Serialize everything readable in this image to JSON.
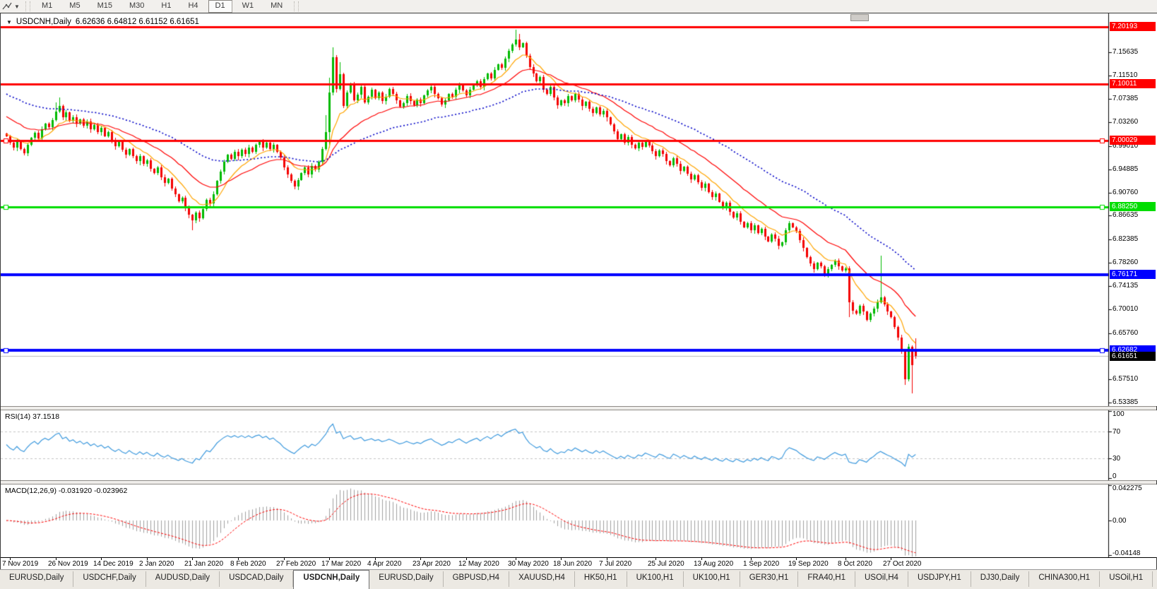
{
  "toolbar": {
    "timeframes": [
      "M1",
      "M5",
      "M15",
      "M30",
      "H1",
      "H4",
      "D1",
      "W1",
      "MN"
    ],
    "active": "D1"
  },
  "title": {
    "symbol_period": "USDCNH,Daily",
    "ohlc": "6.62636 6.64812 6.61152 6.61651"
  },
  "price_axis": {
    "ticks": [
      "7.15635",
      "7.11510",
      "7.07385",
      "7.03260",
      "6.99010",
      "6.94885",
      "6.90760",
      "6.86635",
      "6.82385",
      "6.78260",
      "6.74135",
      "6.70010",
      "6.65760",
      "6.57510",
      "6.53385"
    ],
    "levels": [
      {
        "label": "7.20193",
        "value": 7.20193,
        "color": "#ff0000",
        "width": 3,
        "handles": false
      },
      {
        "label": "7.10011",
        "value": 7.10011,
        "color": "#ff0000",
        "width": 3,
        "handles": false
      },
      {
        "label": "7.00029",
        "value": 7.00029,
        "color": "#ff0000",
        "width": 3,
        "handles": true
      },
      {
        "label": "6.88250",
        "value": 6.8825,
        "color": "#00dd00",
        "width": 3,
        "handles": true
      },
      {
        "label": "6.76171",
        "value": 6.76171,
        "color": "#0000ff",
        "width": 4,
        "handles": false
      },
      {
        "label": "6.62682",
        "value": 6.62682,
        "color": "#0000ff",
        "width": 4,
        "handles": true
      }
    ],
    "current": {
      "label": "6.61651",
      "value": 6.61651,
      "line_color": "#bbbbbb",
      "badge_color": "#000000"
    }
  },
  "time_axis": {
    "labels": [
      "7 Nov 2019",
      "26 Nov 2019",
      "14 Dec 2019",
      "2 Jan 2020",
      "21 Jan 2020",
      "8 Feb 2020",
      "27 Feb 2020",
      "17 Mar 2020",
      "4 Apr 2020",
      "23 Apr 2020",
      "12 May 2020",
      "30 May 2020",
      "18 Jun 2020",
      "7 Jul 2020",
      "25 Jul 2020",
      "13 Aug 2020",
      "1 Sep 2020",
      "19 Sep 2020",
      "8 Oct 2020",
      "27 Oct 2020"
    ],
    "tick_bars": [
      1,
      14,
      27,
      40,
      53,
      66,
      79,
      92,
      105,
      118,
      131,
      145,
      158,
      171,
      185,
      198,
      212,
      225,
      239,
      252
    ]
  },
  "rsi": {
    "label": "RSI(14) 37.1518",
    "value": 37.1518,
    "period": 14,
    "axis_labels": [
      {
        "text": "100",
        "v": 100
      },
      {
        "text": "70",
        "v": 70
      },
      {
        "text": "30",
        "v": 30
      },
      {
        "text": "0",
        "v": 0
      }
    ],
    "level_lines": [
      70,
      30
    ],
    "color": "#3e9ade"
  },
  "macd": {
    "label": "MACD(12,26,9) -0.031920 -0.023962",
    "macd_value": -0.03192,
    "signal_value": -0.023962,
    "axis_labels": [
      {
        "text": "0.042275",
        "v": 0.042275
      },
      {
        "text": "0.00",
        "v": 0
      },
      {
        "text": "-0.04148",
        "v": -0.04148
      }
    ],
    "range": [
      -0.0415,
      0.0423
    ],
    "hist_color": "#a0a0a0",
    "signal_color": "#ff0000"
  },
  "chart_data": {
    "type": "candlestick",
    "symbol": "USDCNH",
    "period": "Daily",
    "ylim": [
      6.528,
      7.226
    ],
    "first_open": 7.012,
    "closes": [
      7.008,
      6.996,
      6.988,
      6.999,
      6.985,
      6.978,
      6.992,
      7.005,
      7.014,
      7.004,
      7.02,
      7.03,
      7.024,
      7.036,
      7.052,
      7.061,
      7.042,
      7.05,
      7.035,
      7.042,
      7.03,
      7.038,
      7.026,
      7.034,
      7.02,
      7.028,
      7.015,
      7.022,
      7.008,
      7.015,
      7.0,
      6.99,
      6.998,
      6.984,
      6.975,
      6.985,
      6.972,
      6.963,
      6.972,
      6.958,
      6.965,
      6.95,
      6.942,
      6.952,
      6.935,
      6.925,
      6.932,
      6.915,
      6.905,
      6.892,
      6.898,
      6.88,
      6.868,
      6.858,
      6.872,
      6.862,
      6.878,
      6.895,
      6.888,
      6.905,
      6.928,
      6.945,
      6.962,
      6.975,
      6.968,
      6.98,
      6.972,
      6.984,
      6.976,
      6.988,
      6.98,
      6.992,
      6.998,
      6.988,
      6.996,
      6.985,
      6.992,
      6.98,
      6.97,
      6.952,
      6.94,
      6.928,
      6.918,
      6.93,
      6.942,
      6.952,
      6.94,
      6.955,
      6.948,
      6.962,
      6.985,
      7.015,
      7.085,
      7.148,
      7.092,
      7.118,
      7.062,
      7.085,
      7.102,
      7.072,
      7.082,
      7.096,
      7.068,
      7.078,
      7.09,
      7.075,
      7.085,
      7.07,
      7.078,
      7.092,
      7.083,
      7.071,
      7.06,
      7.067,
      7.079,
      7.07,
      7.063,
      7.073,
      7.066,
      7.08,
      7.089,
      7.096,
      7.083,
      7.075,
      7.064,
      7.071,
      7.083,
      7.078,
      7.091,
      7.099,
      7.089,
      7.081,
      7.091,
      7.099,
      7.106,
      7.096,
      7.109,
      7.119,
      7.111,
      7.126,
      7.136,
      7.129,
      7.146,
      7.159,
      7.171,
      7.179,
      7.166,
      7.173,
      7.151,
      7.131,
      7.119,
      7.106,
      7.113,
      7.091,
      7.083,
      7.096,
      7.076,
      7.063,
      7.071,
      7.066,
      7.079,
      7.071,
      7.083,
      7.073,
      7.061,
      7.069,
      7.056,
      7.049,
      7.059,
      7.046,
      7.053,
      7.041,
      7.029,
      7.016,
      7.003,
      7.011,
      6.996,
      7.006,
      6.993,
      6.986,
      6.996,
      6.989,
      6.999,
      6.991,
      6.981,
      6.973,
      6.983,
      6.976,
      6.963,
      6.956,
      6.969,
      6.959,
      6.946,
      6.953,
      6.941,
      6.931,
      6.939,
      6.926,
      6.916,
      6.923,
      6.909,
      6.899,
      6.906,
      6.891,
      6.881,
      6.889,
      6.873,
      6.863,
      6.871,
      6.856,
      6.846,
      6.853,
      6.841,
      6.849,
      6.836,
      6.843,
      6.829,
      6.821,
      6.833,
      6.826,
      6.813,
      6.819,
      6.841,
      6.853,
      6.846,
      6.839,
      6.823,
      6.809,
      6.793,
      6.781,
      6.771,
      6.783,
      6.776,
      6.763,
      6.771,
      6.779,
      6.786,
      6.776,
      6.769,
      6.773,
      6.712,
      6.698,
      6.693,
      6.706,
      6.696,
      6.681,
      6.693,
      6.701,
      6.713,
      6.721,
      6.709,
      6.696,
      6.686,
      6.668,
      6.65,
      6.628,
      6.576,
      6.634,
      6.6005,
      6.61651
    ],
    "overrides": {
      "0": {
        "o": 7.012
      },
      "14": {
        "h": 7.068
      },
      "15": {
        "h": 7.076
      },
      "53": {
        "l": 6.841
      },
      "91": {
        "h": 7.045
      },
      "92": {
        "h": 7.112,
        "l": 6.988
      },
      "93": {
        "h": 7.166
      },
      "95": {
        "h": 7.14
      },
      "145": {
        "h": 7.1965
      },
      "146": {
        "h": 7.19
      },
      "240": {
        "l": 6.686
      },
      "249": {
        "h": 6.796
      },
      "256": {
        "l": 6.566
      },
      "257": {
        "h": 6.639
      },
      "258": {
        "h": 6.636,
        "l": 6.5505
      },
      "259": {
        "o": 6.62636,
        "h": 6.64812,
        "l": 6.61152
      }
    },
    "last_bar_ohlc": {
      "open": 6.62636,
      "high": 6.64812,
      "low": 6.61152,
      "close": 6.61651
    },
    "moving_averages": [
      {
        "name": "fast",
        "type": "ema",
        "period": 10,
        "seed": 7.012,
        "color": "#ffa500",
        "style": "solid"
      },
      {
        "name": "mid",
        "type": "ema",
        "period": 25,
        "seed": 7.045,
        "color": "#ff0000",
        "style": "solid"
      },
      {
        "name": "slow",
        "type": "ema",
        "period": 60,
        "seed": 7.085,
        "color": "#0000c8",
        "style": "dot"
      }
    ],
    "colors": {
      "up": "#00ba00",
      "down": "#f40000"
    }
  },
  "tabs": {
    "items": [
      {
        "label": "EURUSD,Daily",
        "active": false
      },
      {
        "label": "USDCHF,Daily",
        "active": false
      },
      {
        "label": "AUDUSD,Daily",
        "active": false
      },
      {
        "label": "USDCAD,Daily",
        "active": false
      },
      {
        "label": "USDCNH,Daily",
        "active": true
      },
      {
        "label": "EURUSD,Daily",
        "active": false
      },
      {
        "label": "GBPUSD,H4",
        "active": false
      },
      {
        "label": "XAUUSD,H4",
        "active": false
      },
      {
        "label": "HK50,H1",
        "active": false
      },
      {
        "label": "UK100,H1",
        "active": false
      },
      {
        "label": "UK100,H1",
        "active": false
      },
      {
        "label": "GER30,H1",
        "active": false
      },
      {
        "label": "FRA40,H1",
        "active": false
      },
      {
        "label": "USOil,H4",
        "active": false
      },
      {
        "label": "USDJPY,H1",
        "active": false
      },
      {
        "label": "DJ30,Daily",
        "active": false
      },
      {
        "label": "CHINA300,H1",
        "active": false
      },
      {
        "label": "USOil,H1",
        "active": false
      }
    ],
    "scroll_left": "◂",
    "scroll_right": "▸"
  }
}
